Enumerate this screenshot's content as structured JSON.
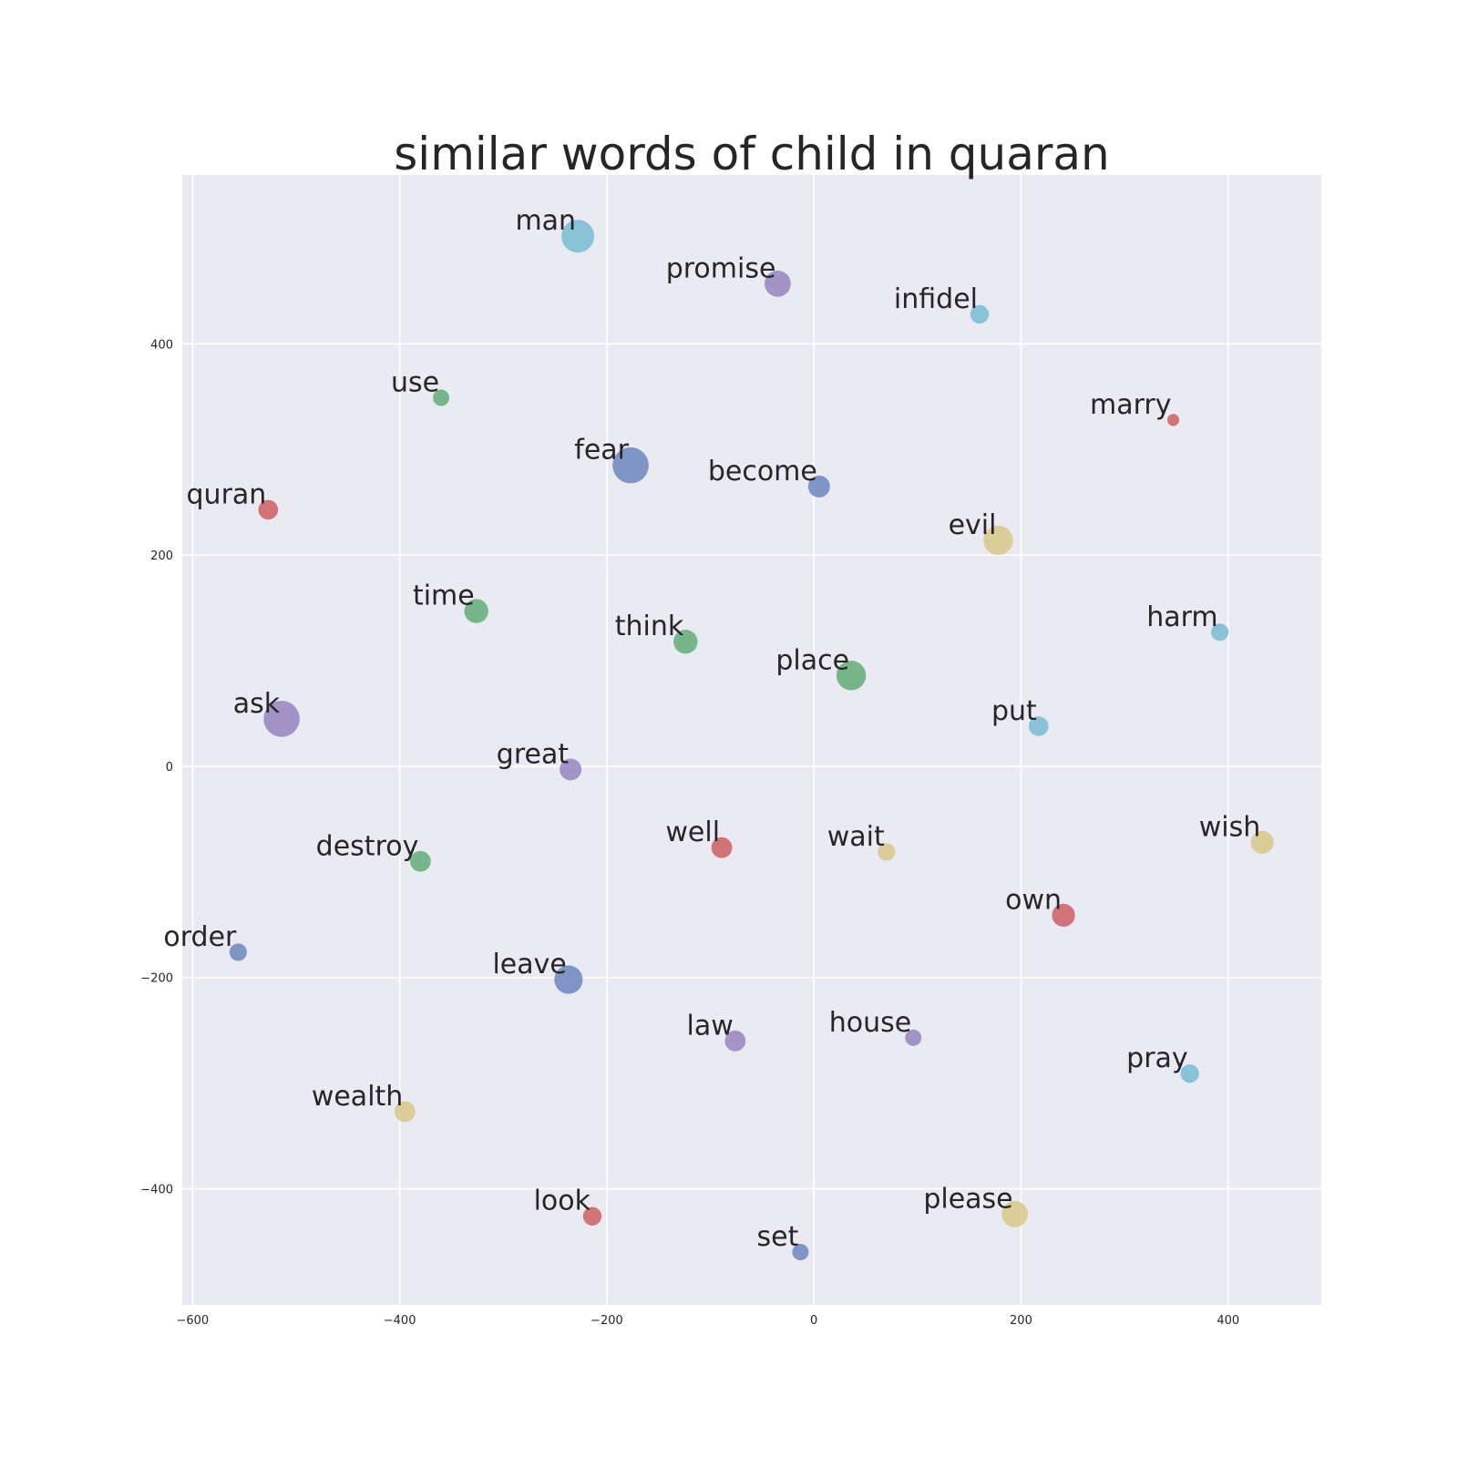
{
  "chart_data": {
    "type": "scatter",
    "title": "similar words of child in quaran",
    "xlabel": "",
    "ylabel": "",
    "xlim": [
      -610,
      490
    ],
    "ylim": [
      -510,
      560
    ],
    "xticks": [
      -600,
      -400,
      -200,
      0,
      200,
      400
    ],
    "yticks": [
      -400,
      -200,
      0,
      200,
      400
    ],
    "xtick_labels": [
      "−600",
      "−400",
      "−200",
      "0",
      "200",
      "400"
    ],
    "ytick_labels": [
      "−400",
      "−200",
      "0",
      "200",
      "400"
    ],
    "grid": true,
    "colors": {
      "blue": "#6b86bd",
      "green": "#62ad76",
      "red": "#cd5e62",
      "purple": "#9585c0",
      "yellow": "#d8c888",
      "cyan": "#78bcd3",
      "background": "#eaeaf2"
    },
    "points": [
      {
        "label": "man",
        "x": -228,
        "y": 502,
        "size": 3.0,
        "color": "cyan"
      },
      {
        "label": "promise",
        "x": -35,
        "y": 457,
        "size": 2.4,
        "color": "purple"
      },
      {
        "label": "infidel",
        "x": 160,
        "y": 428,
        "size": 1.7,
        "color": "cyan"
      },
      {
        "label": "use",
        "x": -360,
        "y": 349,
        "size": 1.5,
        "color": "green"
      },
      {
        "label": "marry",
        "x": 347,
        "y": 328,
        "size": 1.1,
        "color": "red"
      },
      {
        "label": "fear",
        "x": -177,
        "y": 285,
        "size": 3.3,
        "color": "blue"
      },
      {
        "label": "become",
        "x": 5,
        "y": 265,
        "size": 2.0,
        "color": "blue"
      },
      {
        "label": "quran",
        "x": -527,
        "y": 243,
        "size": 1.8,
        "color": "red"
      },
      {
        "label": "evil",
        "x": 178,
        "y": 214,
        "size": 2.7,
        "color": "yellow"
      },
      {
        "label": "time",
        "x": -326,
        "y": 147,
        "size": 2.2,
        "color": "green"
      },
      {
        "label": "harm",
        "x": 392,
        "y": 127,
        "size": 1.6,
        "color": "cyan"
      },
      {
        "label": "think",
        "x": -124,
        "y": 118,
        "size": 2.2,
        "color": "green"
      },
      {
        "label": "place",
        "x": 36,
        "y": 86,
        "size": 2.7,
        "color": "green"
      },
      {
        "label": "ask",
        "x": -514,
        "y": 45,
        "size": 3.3,
        "color": "purple"
      },
      {
        "label": "put",
        "x": 217,
        "y": 38,
        "size": 1.8,
        "color": "cyan"
      },
      {
        "label": "great",
        "x": -235,
        "y": -3,
        "size": 2.0,
        "color": "purple"
      },
      {
        "label": "wish",
        "x": 433,
        "y": -72,
        "size": 2.1,
        "color": "yellow"
      },
      {
        "label": "well",
        "x": -89,
        "y": -77,
        "size": 1.9,
        "color": "red"
      },
      {
        "label": "wait",
        "x": 70,
        "y": -81,
        "size": 1.6,
        "color": "yellow"
      },
      {
        "label": "destroy",
        "x": -380,
        "y": -90,
        "size": 1.9,
        "color": "green"
      },
      {
        "label": "own",
        "x": 241,
        "y": -141,
        "size": 2.1,
        "color": "red"
      },
      {
        "label": "order",
        "x": -556,
        "y": -176,
        "size": 1.6,
        "color": "blue"
      },
      {
        "label": "leave",
        "x": -237,
        "y": -202,
        "size": 2.6,
        "color": "blue"
      },
      {
        "label": "law",
        "x": -76,
        "y": -260,
        "size": 1.9,
        "color": "purple"
      },
      {
        "label": "house",
        "x": 96,
        "y": -257,
        "size": 1.5,
        "color": "purple"
      },
      {
        "label": "pray",
        "x": 363,
        "y": -291,
        "size": 1.7,
        "color": "cyan"
      },
      {
        "label": "wealth",
        "x": -395,
        "y": -327,
        "size": 1.9,
        "color": "yellow"
      },
      {
        "label": "please",
        "x": 194,
        "y": -424,
        "size": 2.4,
        "color": "yellow"
      },
      {
        "label": "look",
        "x": -214,
        "y": -426,
        "size": 1.7,
        "color": "red"
      },
      {
        "label": "set",
        "x": -13,
        "y": -460,
        "size": 1.5,
        "color": "blue"
      }
    ]
  }
}
